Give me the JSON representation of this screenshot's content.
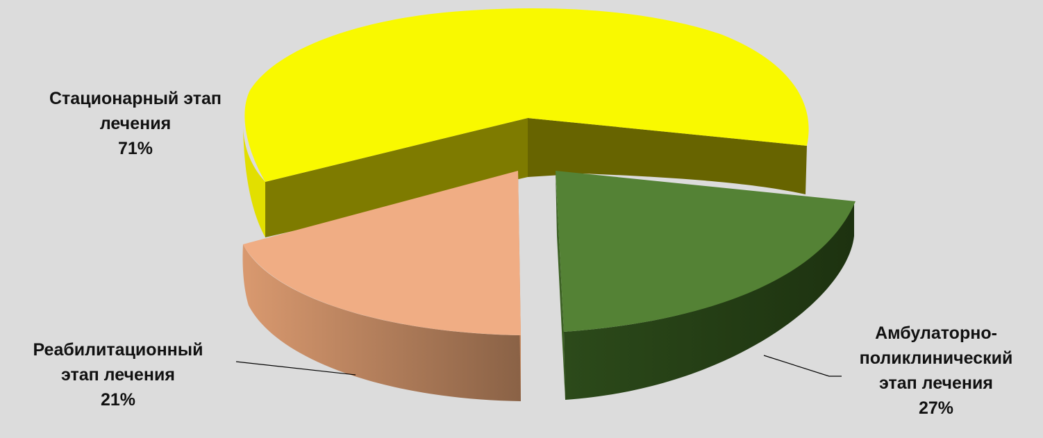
{
  "chart_data": {
    "type": "pie",
    "style": "3d-exploded",
    "slices": [
      {
        "label_lines": [
          "Стационарный этап",
          "лечения"
        ],
        "value_label": "71%",
        "value": 71,
        "color_top": "#f9f900",
        "color_side": "#7d7a00"
      },
      {
        "label_lines": [
          "Амбулаторно-",
          "поликлинический",
          "этап лечения"
        ],
        "value_label": "27%",
        "value": 27,
        "color_top": "#548235",
        "color_side": "#2b4519"
      },
      {
        "label_lines": [
          "Реабилитационный",
          "этап лечения"
        ],
        "value_label": "21%",
        "value": 21,
        "color_top": "#f0ad84",
        "color_side": "#b07a58"
      }
    ],
    "legend": "none"
  }
}
